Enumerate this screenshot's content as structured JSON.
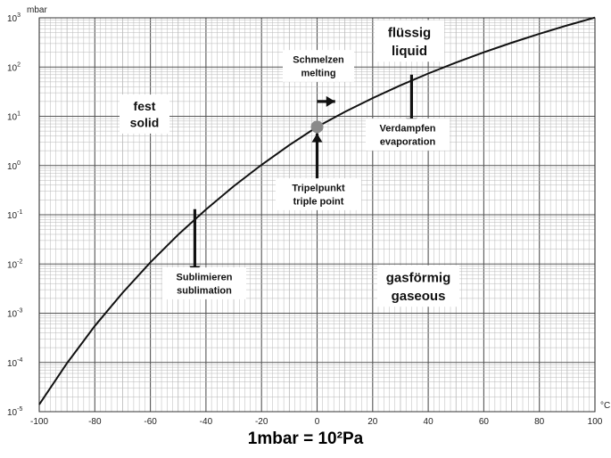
{
  "chart_data": {
    "type": "line",
    "title": "",
    "ylabel": "mbar",
    "xlabel": "",
    "x_unit": "°C",
    "y_scale": "log",
    "xlim": [
      -100,
      100
    ],
    "ylim": [
      1e-05,
      1000
    ],
    "x_ticks": [
      "-100",
      "-80",
      "-60",
      "-40",
      "-20",
      "0",
      "20",
      "40",
      "60",
      "80",
      "100"
    ],
    "y_ticks": [
      "10-5",
      "10-4",
      "10-3",
      "10-2",
      "10-1",
      "100",
      "101",
      "102",
      "103"
    ],
    "grid": true,
    "series": [
      {
        "x": [
          -100,
          -90,
          -80,
          -70,
          -60,
          -50,
          -40,
          -30,
          -20,
          -10,
          0,
          10,
          20,
          30,
          40,
          50,
          60,
          70,
          80,
          90,
          100
        ],
        "y": [
          1.4e-05,
          9.7e-05,
          0.00055,
          0.0026,
          0.0108,
          0.0394,
          0.128,
          0.38,
          1.03,
          2.6,
          6.1,
          12.3,
          23.4,
          42.4,
          73.8,
          123.4,
          199.3,
          311.8,
          473.4,
          701.1,
          1013.3
        ]
      }
    ],
    "points": [
      {
        "name": "triple-point",
        "x": 0.01,
        "y": 6.11
      }
    ],
    "annotations": {
      "fest": [
        "fest",
        "solid"
      ],
      "fluessig": [
        "flüssig",
        "liquid"
      ],
      "gas": [
        "gasförmig",
        "gaseous"
      ],
      "schmelzen": [
        "Schmelzen",
        "melting"
      ],
      "verdampfen": [
        "Verdampfen",
        "evaporation"
      ],
      "tripel": [
        "Tripelpunkt",
        "triple point"
      ],
      "sublimieren": [
        "Sublimieren",
        "sublimation"
      ]
    },
    "colors": {
      "curve": "#111111",
      "grid_major": "#555555",
      "grid_minor": "#b8b8b8",
      "triple_point": "#8a8a8a"
    }
  },
  "caption": "1mbar = 10²Pa"
}
